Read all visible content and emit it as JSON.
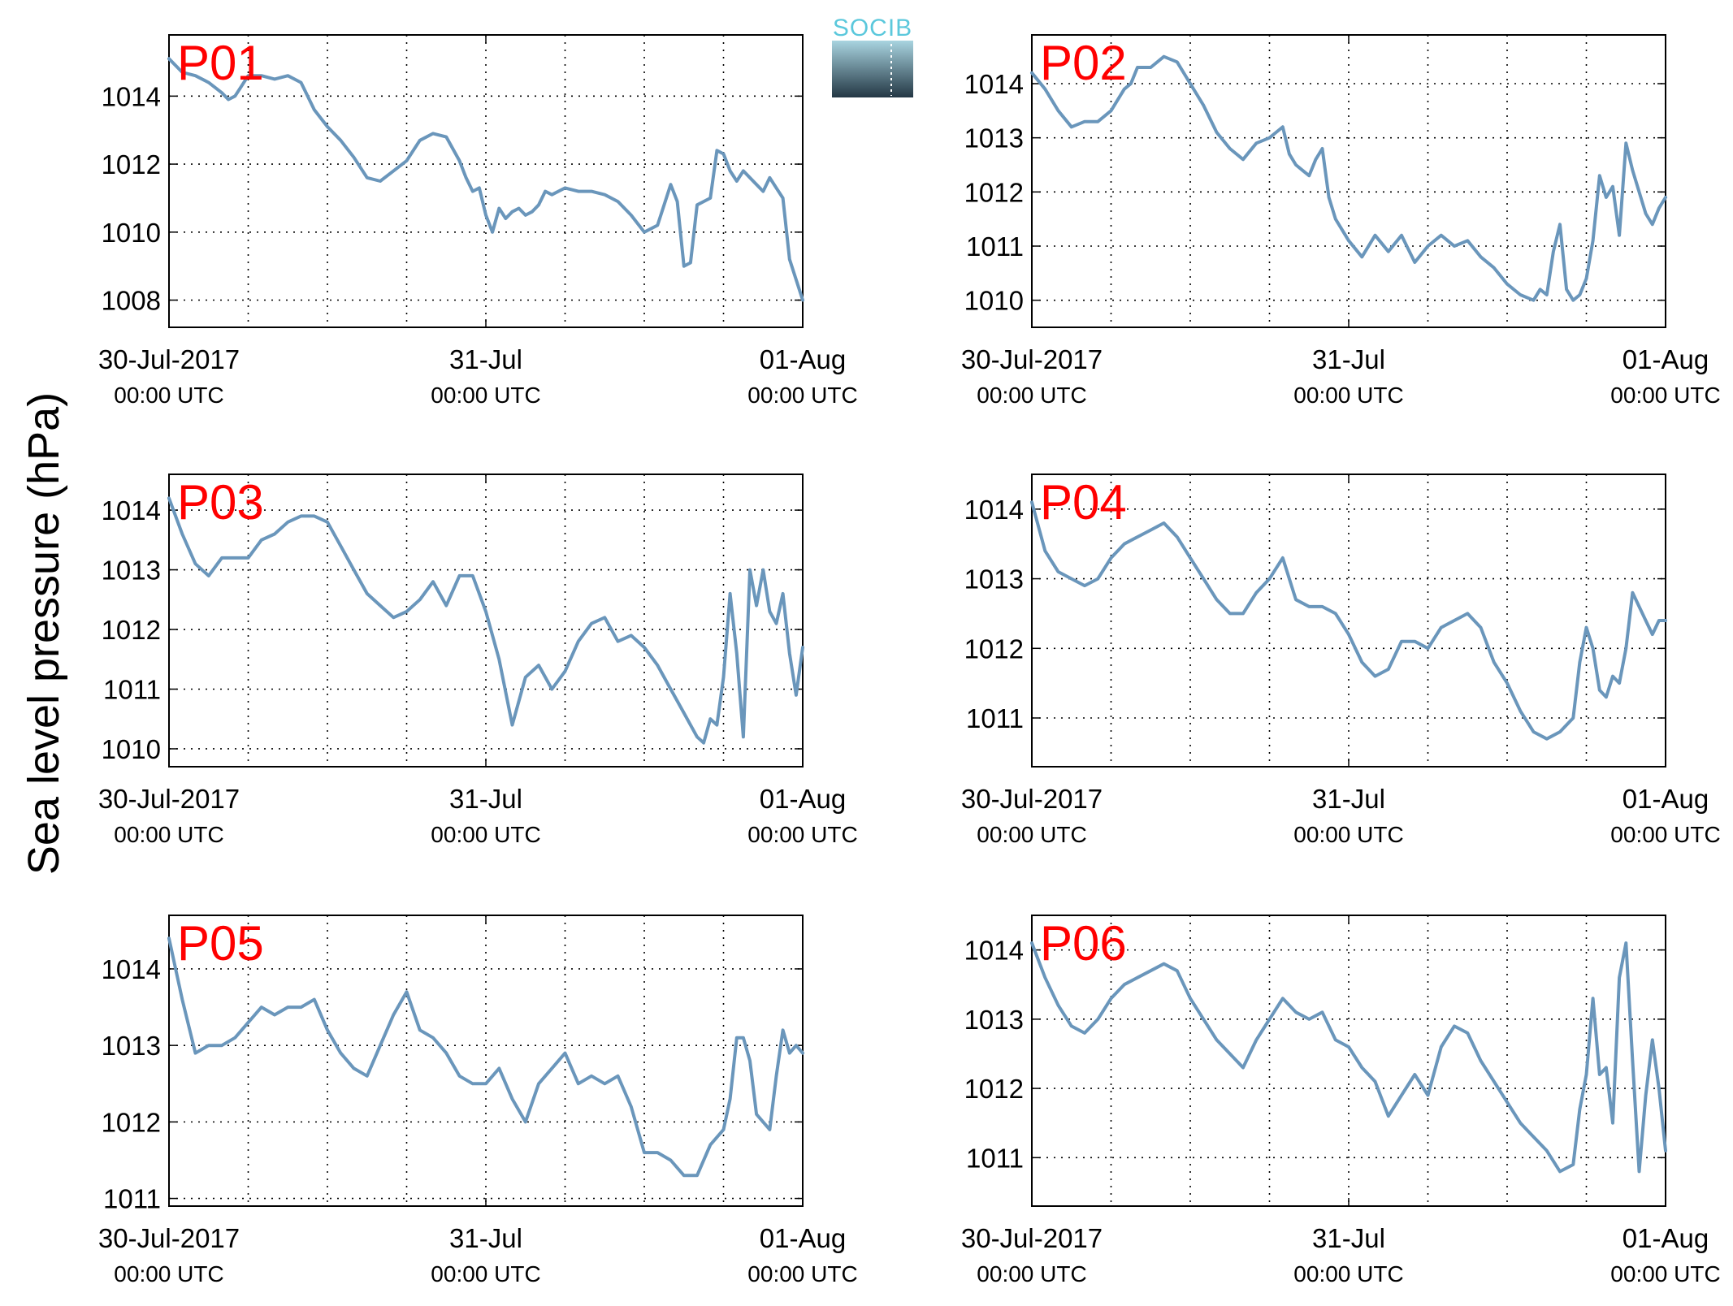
{
  "figure": {
    "ylabel": "Sea level pressure (hPa)",
    "logo": "SOCIB"
  },
  "style": {
    "line_color": "#6a96bb",
    "label_color": "#ff0000"
  },
  "chart_data": [
    {
      "type": "line",
      "title": "P01",
      "x_ticks": [
        {
          "main": "30-Jul-2017",
          "sub": "00:00 UTC",
          "h": 0
        },
        {
          "main": "31-Jul",
          "sub": "00:00 UTC",
          "h": 24
        },
        {
          "main": "01-Aug",
          "sub": "00:00 UTC",
          "h": 48
        }
      ],
      "x_range_hours": [
        0,
        48
      ],
      "ylim": [
        1007.2,
        1015.8
      ],
      "yticks": [
        1008,
        1010,
        1012,
        1014
      ],
      "series": [
        {
          "x": [
            0,
            1,
            2,
            3,
            4,
            4.5,
            5,
            5.5,
            6,
            7,
            8,
            9,
            10,
            11,
            12,
            13,
            14,
            15,
            16,
            17,
            18,
            19,
            20,
            21,
            22,
            22.5,
            23,
            23.5,
            24,
            24.5,
            25,
            25.5,
            26,
            26.5,
            27,
            27.5,
            28,
            28.5,
            29,
            30,
            31,
            32,
            33,
            34,
            35,
            36,
            37,
            38,
            38.5,
            39,
            39.5,
            40,
            40.5,
            41,
            41.5,
            42,
            42.5,
            43,
            43.5,
            44,
            44.5,
            45,
            45.5,
            46,
            46.5,
            47,
            47.5,
            48
          ],
          "y": [
            1015.1,
            1014.7,
            1014.6,
            1014.4,
            1014.1,
            1013.9,
            1014.0,
            1014.3,
            1014.6,
            1014.6,
            1014.5,
            1014.6,
            1014.4,
            1013.6,
            1013.1,
            1012.7,
            1012.2,
            1011.6,
            1011.5,
            1011.8,
            1012.1,
            1012.7,
            1012.9,
            1012.8,
            1012.1,
            1011.6,
            1011.2,
            1011.3,
            1010.5,
            1010.0,
            1010.7,
            1010.4,
            1010.6,
            1010.7,
            1010.5,
            1010.6,
            1010.8,
            1011.2,
            1011.1,
            1011.3,
            1011.2,
            1011.2,
            1011.1,
            1010.9,
            1010.5,
            1010.0,
            1010.2,
            1011.4,
            1010.9,
            1009.0,
            1009.1,
            1010.8,
            1010.9,
            1011.0,
            1012.4,
            1012.3,
            1011.8,
            1011.5,
            1011.8,
            1011.6,
            1011.4,
            1011.2,
            1011.6,
            1011.3,
            1011.0,
            1009.2,
            1008.6,
            1008.0
          ]
        }
      ]
    },
    {
      "type": "line",
      "title": "P02",
      "x_ticks": [
        {
          "main": "30-Jul-2017",
          "sub": "00:00 UTC",
          "h": 0
        },
        {
          "main": "31-Jul",
          "sub": "00:00 UTC",
          "h": 24
        },
        {
          "main": "01-Aug",
          "sub": "00:00 UTC",
          "h": 48
        }
      ],
      "x_range_hours": [
        0,
        48
      ],
      "ylim": [
        1009.5,
        1014.9
      ],
      "yticks": [
        1010,
        1011,
        1012,
        1013,
        1014
      ],
      "series": [
        {
          "x": [
            0,
            1,
            2,
            3,
            4,
            5,
            6,
            7,
            7.5,
            8,
            9,
            10,
            11,
            12,
            13,
            14,
            15,
            16,
            17,
            18,
            18.5,
            19,
            19.5,
            20,
            20.5,
            21,
            21.5,
            22,
            22.5,
            23,
            24,
            25,
            26,
            27,
            28,
            29,
            30,
            31,
            32,
            33,
            34,
            35,
            36,
            37,
            38,
            38.5,
            39,
            39.5,
            40,
            40.5,
            41,
            41.5,
            42,
            42.5,
            43,
            43.5,
            44,
            44.5,
            45,
            45.5,
            46,
            46.5,
            47,
            47.5,
            48
          ],
          "y": [
            1014.2,
            1013.9,
            1013.5,
            1013.2,
            1013.3,
            1013.3,
            1013.5,
            1013.9,
            1014.0,
            1014.3,
            1014.3,
            1014.5,
            1014.4,
            1014.0,
            1013.6,
            1013.1,
            1012.8,
            1012.6,
            1012.9,
            1013.0,
            1013.1,
            1013.2,
            1012.7,
            1012.5,
            1012.4,
            1012.3,
            1012.6,
            1012.8,
            1011.9,
            1011.5,
            1011.1,
            1010.8,
            1011.2,
            1010.9,
            1011.2,
            1010.7,
            1011.0,
            1011.2,
            1011.0,
            1011.1,
            1010.8,
            1010.6,
            1010.3,
            1010.1,
            1010.0,
            1010.2,
            1010.1,
            1010.9,
            1011.4,
            1010.2,
            1010.0,
            1010.1,
            1010.4,
            1011.1,
            1012.3,
            1011.9,
            1012.1,
            1011.2,
            1012.9,
            1012.4,
            1012.0,
            1011.6,
            1011.4,
            1011.7,
            1011.9
          ]
        }
      ]
    },
    {
      "type": "line",
      "title": "P03",
      "x_ticks": [
        {
          "main": "30-Jul-2017",
          "sub": "00:00 UTC",
          "h": 0
        },
        {
          "main": "31-Jul",
          "sub": "00:00 UTC",
          "h": 24
        },
        {
          "main": "01-Aug",
          "sub": "00:00 UTC",
          "h": 48
        }
      ],
      "x_range_hours": [
        0,
        48
      ],
      "ylim": [
        1009.7,
        1014.6
      ],
      "yticks": [
        1010,
        1011,
        1012,
        1013,
        1014
      ],
      "series": [
        {
          "x": [
            0,
            1,
            2,
            3,
            4,
            5,
            6,
            7,
            8,
            9,
            10,
            11,
            12,
            13,
            14,
            15,
            16,
            17,
            18,
            19,
            20,
            21,
            22,
            23,
            24,
            25,
            26,
            27,
            28,
            29,
            30,
            31,
            32,
            33,
            34,
            35,
            36,
            37,
            38,
            39,
            40,
            40.5,
            41,
            41.5,
            42,
            42.5,
            43,
            43.5,
            44,
            44.5,
            45,
            45.5,
            46,
            46.5,
            47,
            47.5,
            48
          ],
          "y": [
            1014.2,
            1013.6,
            1013.1,
            1012.9,
            1013.2,
            1013.2,
            1013.2,
            1013.5,
            1013.6,
            1013.8,
            1013.9,
            1013.9,
            1013.8,
            1013.4,
            1013.0,
            1012.6,
            1012.4,
            1012.2,
            1012.3,
            1012.5,
            1012.8,
            1012.4,
            1012.9,
            1012.9,
            1012.3,
            1011.5,
            1010.4,
            1011.2,
            1011.4,
            1011.0,
            1011.3,
            1011.8,
            1012.1,
            1012.2,
            1011.8,
            1011.9,
            1011.7,
            1011.4,
            1011.0,
            1010.6,
            1010.2,
            1010.1,
            1010.5,
            1010.4,
            1011.2,
            1012.6,
            1011.6,
            1010.2,
            1013.0,
            1012.4,
            1013.0,
            1012.3,
            1012.1,
            1012.6,
            1011.6,
            1010.9,
            1011.7
          ]
        }
      ]
    },
    {
      "type": "line",
      "title": "P04",
      "x_ticks": [
        {
          "main": "30-Jul-2017",
          "sub": "00:00 UTC",
          "h": 0
        },
        {
          "main": "31-Jul",
          "sub": "00:00 UTC",
          "h": 24
        },
        {
          "main": "01-Aug",
          "sub": "00:00 UTC",
          "h": 48
        }
      ],
      "x_range_hours": [
        0,
        48
      ],
      "ylim": [
        1010.3,
        1014.5
      ],
      "yticks": [
        1011,
        1012,
        1013,
        1014
      ],
      "series": [
        {
          "x": [
            0,
            1,
            2,
            3,
            4,
            5,
            6,
            7,
            8,
            9,
            10,
            11,
            12,
            13,
            14,
            15,
            16,
            17,
            18,
            19,
            20,
            21,
            22,
            23,
            24,
            25,
            26,
            27,
            28,
            29,
            30,
            31,
            32,
            33,
            34,
            35,
            36,
            37,
            38,
            39,
            40,
            41,
            41.5,
            42,
            42.5,
            43,
            43.5,
            44,
            44.5,
            45,
            45.5,
            46,
            46.5,
            47,
            47.5,
            48
          ],
          "y": [
            1014.1,
            1013.4,
            1013.1,
            1013.0,
            1012.9,
            1013.0,
            1013.3,
            1013.5,
            1013.6,
            1013.7,
            1013.8,
            1013.6,
            1013.3,
            1013.0,
            1012.7,
            1012.5,
            1012.5,
            1012.8,
            1013.0,
            1013.3,
            1012.7,
            1012.6,
            1012.6,
            1012.5,
            1012.2,
            1011.8,
            1011.6,
            1011.7,
            1012.1,
            1012.1,
            1012.0,
            1012.3,
            1012.4,
            1012.5,
            1012.3,
            1011.8,
            1011.5,
            1011.1,
            1010.8,
            1010.7,
            1010.8,
            1011.0,
            1011.8,
            1012.3,
            1012.0,
            1011.4,
            1011.3,
            1011.6,
            1011.5,
            1012.0,
            1012.8,
            1012.6,
            1012.4,
            1012.2,
            1012.4,
            1012.4
          ]
        }
      ]
    },
    {
      "type": "line",
      "title": "P05",
      "x_ticks": [
        {
          "main": "30-Jul-2017",
          "sub": "00:00 UTC",
          "h": 0
        },
        {
          "main": "31-Jul",
          "sub": "00:00 UTC",
          "h": 24
        },
        {
          "main": "01-Aug",
          "sub": "00:00 UTC",
          "h": 48
        }
      ],
      "x_range_hours": [
        0,
        48
      ],
      "ylim": [
        1010.9,
        1014.7
      ],
      "yticks": [
        1011,
        1012,
        1013,
        1014
      ],
      "series": [
        {
          "x": [
            0,
            1,
            2,
            3,
            4,
            5,
            6,
            7,
            8,
            9,
            10,
            11,
            12,
            13,
            14,
            15,
            16,
            17,
            18,
            19,
            20,
            21,
            22,
            23,
            24,
            25,
            26,
            27,
            28,
            29,
            30,
            31,
            32,
            33,
            34,
            35,
            36,
            37,
            38,
            39,
            40,
            41,
            42,
            42.5,
            43,
            43.5,
            44,
            44.5,
            45,
            45.5,
            46,
            46.5,
            47,
            47.5,
            48
          ],
          "y": [
            1014.4,
            1013.6,
            1012.9,
            1013.0,
            1013.0,
            1013.1,
            1013.3,
            1013.5,
            1013.4,
            1013.5,
            1013.5,
            1013.6,
            1013.2,
            1012.9,
            1012.7,
            1012.6,
            1013.0,
            1013.4,
            1013.7,
            1013.2,
            1013.1,
            1012.9,
            1012.6,
            1012.5,
            1012.5,
            1012.7,
            1012.3,
            1012.0,
            1012.5,
            1012.7,
            1012.9,
            1012.5,
            1012.6,
            1012.5,
            1012.6,
            1012.2,
            1011.6,
            1011.6,
            1011.5,
            1011.3,
            1011.3,
            1011.7,
            1011.9,
            1012.3,
            1013.1,
            1013.1,
            1012.8,
            1012.1,
            1012.0,
            1011.9,
            1012.6,
            1013.2,
            1012.9,
            1013.0,
            1012.9
          ]
        }
      ]
    },
    {
      "type": "line",
      "title": "P06",
      "x_ticks": [
        {
          "main": "30-Jul-2017",
          "sub": "00:00 UTC",
          "h": 0
        },
        {
          "main": "31-Jul",
          "sub": "00:00 UTC",
          "h": 24
        },
        {
          "main": "01-Aug",
          "sub": "00:00 UTC",
          "h": 48
        }
      ],
      "x_range_hours": [
        0,
        48
      ],
      "ylim": [
        1010.3,
        1014.5
      ],
      "yticks": [
        1011,
        1012,
        1013,
        1014
      ],
      "series": [
        {
          "x": [
            0,
            1,
            2,
            3,
            4,
            5,
            6,
            7,
            8,
            9,
            10,
            11,
            12,
            13,
            14,
            15,
            16,
            17,
            18,
            19,
            20,
            21,
            22,
            23,
            24,
            25,
            26,
            27,
            28,
            29,
            30,
            31,
            32,
            33,
            34,
            35,
            36,
            37,
            38,
            39,
            40,
            41,
            41.5,
            42,
            42.5,
            43,
            43.5,
            44,
            44.5,
            45,
            45.5,
            46,
            46.5,
            47,
            47.5,
            48
          ],
          "y": [
            1014.1,
            1013.6,
            1013.2,
            1012.9,
            1012.8,
            1013.0,
            1013.3,
            1013.5,
            1013.6,
            1013.7,
            1013.8,
            1013.7,
            1013.3,
            1013.0,
            1012.7,
            1012.5,
            1012.3,
            1012.7,
            1013.0,
            1013.3,
            1013.1,
            1013.0,
            1013.1,
            1012.7,
            1012.6,
            1012.3,
            1012.1,
            1011.6,
            1011.9,
            1012.2,
            1011.9,
            1012.6,
            1012.9,
            1012.8,
            1012.4,
            1012.1,
            1011.8,
            1011.5,
            1011.3,
            1011.1,
            1010.8,
            1010.9,
            1011.7,
            1012.2,
            1013.3,
            1012.2,
            1012.3,
            1011.5,
            1013.6,
            1014.1,
            1012.4,
            1010.8,
            1011.9,
            1012.7,
            1012.0,
            1011.1
          ]
        }
      ]
    }
  ]
}
